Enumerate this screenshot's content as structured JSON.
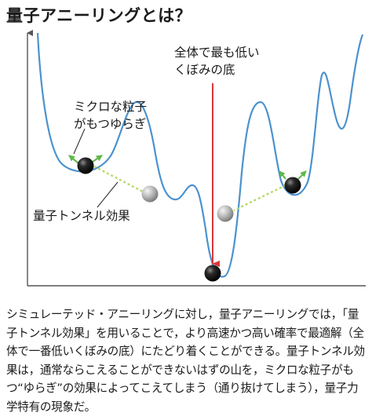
{
  "title": "量子アニーリングとは？",
  "diagram": {
    "label_lowest": [
      "全体で最も低い",
      "くぼみの底"
    ],
    "label_particle": [
      "ミクロな粒子",
      "がもつゆらぎ"
    ],
    "label_tunnel": "量子トンネル効果",
    "colors": {
      "curve": "#4b92cf",
      "arrow_red": "#d9363a",
      "dotted_green": "#b7d96a",
      "fluct_arrow": "#5fb84a",
      "axis": "#555555"
    }
  },
  "description": "シミュレーテッド・アニーリングに対し，量子アニーリングでは，「量子トンネル効果」を用いることで，より高速かつ高い確率で最適解（全体で一番低いくぼみの底）にたどり着くことができる。量子トンネル効果は，通常ならこえることができないはずの山を，ミクロな粒子がもつ“ゆらぎ”の効果によってこえてしまう（通り抜けてしまう），量子力学特有の現象だ。"
}
